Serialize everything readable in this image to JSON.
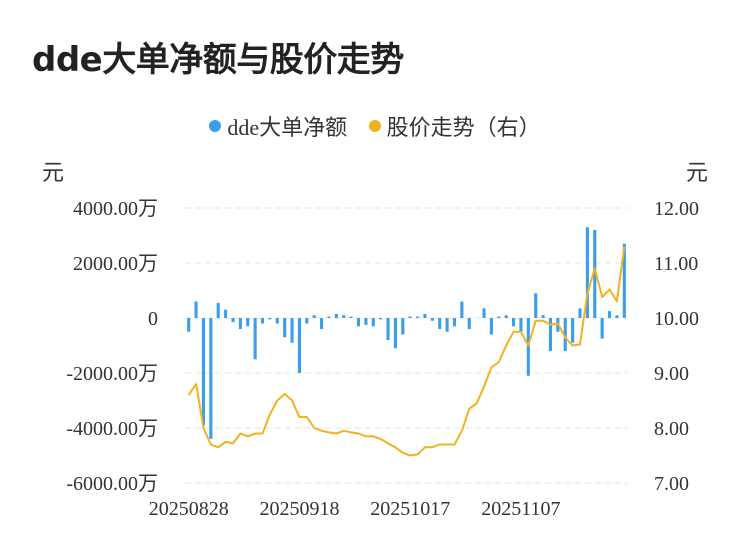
{
  "colors": {
    "bar": "#3a9ee8",
    "line": "#f2b21d",
    "grid": "#e3e3e3"
  },
  "chart_data": {
    "type": "bar",
    "title": "dde大单净额与股价走势",
    "legend": [
      {
        "name": "dde大单净额",
        "color": "#3a9ee8",
        "icon": "circle"
      },
      {
        "name": "股价走势（右）",
        "color": "#f2b21d",
        "icon": "circle"
      }
    ],
    "legend_position": "top-center",
    "left_unit": "元",
    "right_unit": "元",
    "y_left": {
      "min": -6000,
      "max": 4000,
      "ticks": [
        4000,
        2000,
        0,
        -2000,
        -4000,
        -6000
      ],
      "tick_labels": [
        "4000.00万",
        "2000.00万",
        "0",
        "-2000.00万",
        "-4000.00万",
        "-6000.00万"
      ]
    },
    "y_right": {
      "min": 7,
      "max": 12,
      "ticks": [
        12,
        11,
        10,
        9,
        8,
        7
      ],
      "tick_labels": [
        "12.00",
        "11.00",
        "10.00",
        "9.00",
        "8.00",
        "7.00"
      ]
    },
    "x_tick_labels": [
      {
        "index": 0,
        "label": "20250828"
      },
      {
        "index": 15,
        "label": "20250918"
      },
      {
        "index": 30,
        "label": "20251017"
      },
      {
        "index": 45,
        "label": "20251107"
      }
    ],
    "grid": true,
    "series": [
      {
        "name": "dde大单净额",
        "type": "bar",
        "axis": "left",
        "values": [
          -500,
          600,
          -3900,
          -4400,
          550,
          300,
          -150,
          -400,
          -300,
          -1500,
          -200,
          -50,
          -200,
          -700,
          -900,
          -2000,
          -200,
          100,
          -400,
          50,
          150,
          100,
          50,
          -300,
          -250,
          -300,
          -50,
          -800,
          -1100,
          -600,
          50,
          50,
          150,
          -100,
          -400,
          -500,
          -300,
          600,
          -400,
          0,
          350,
          -600,
          50,
          100,
          -300,
          -500,
          -2100,
          900,
          100,
          -1200,
          -500,
          -1200,
          -900,
          350,
          3300,
          3200,
          -750,
          250,
          100,
          2700
        ]
      },
      {
        "name": "股价走势（右）",
        "type": "line",
        "axis": "right",
        "values": [
          8.6,
          8.8,
          8.0,
          7.7,
          7.65,
          7.75,
          7.72,
          7.9,
          7.85,
          7.9,
          7.9,
          8.25,
          8.5,
          8.62,
          8.5,
          8.2,
          8.2,
          8.0,
          7.95,
          7.92,
          7.9,
          7.95,
          7.92,
          7.9,
          7.85,
          7.85,
          7.8,
          7.72,
          7.65,
          7.55,
          7.5,
          7.52,
          7.65,
          7.65,
          7.7,
          7.7,
          7.7,
          7.95,
          8.35,
          8.45,
          8.75,
          9.1,
          9.2,
          9.5,
          9.75,
          9.75,
          9.5,
          9.95,
          9.95,
          9.88,
          9.9,
          9.65,
          9.5,
          9.52,
          10.45,
          10.9,
          10.38,
          10.52,
          10.3,
          11.3
        ]
      }
    ]
  }
}
